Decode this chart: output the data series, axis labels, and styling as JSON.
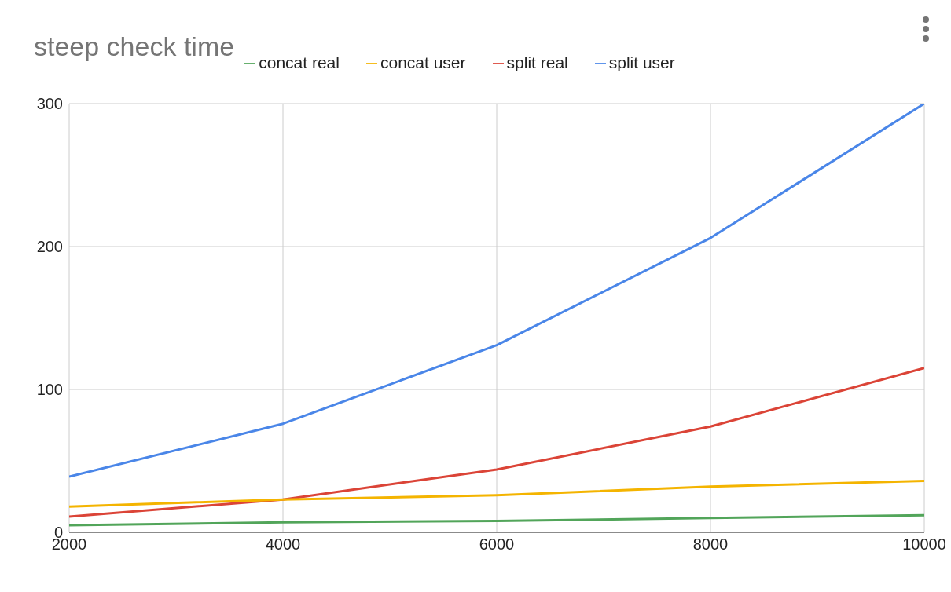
{
  "chart_data": {
    "type": "line",
    "title": "steep check time",
    "x": [
      2000,
      4000,
      6000,
      8000,
      10000
    ],
    "series": [
      {
        "name": "split user",
        "color": "#4a86e8",
        "values": [
          39,
          76,
          131,
          206,
          300
        ]
      },
      {
        "name": "split real",
        "color": "#db4437",
        "values": [
          11,
          23,
          44,
          74,
          115
        ]
      },
      {
        "name": "concat user",
        "color": "#f4b400",
        "values": [
          18,
          23,
          26,
          32,
          36
        ]
      },
      {
        "name": "concat real",
        "color": "#52a55a",
        "values": [
          5,
          7,
          8,
          10,
          12
        ]
      }
    ],
    "xlim": [
      2000,
      10000
    ],
    "xticks": [
      2000,
      4000,
      6000,
      8000,
      10000
    ],
    "ylim": [
      0,
      300
    ],
    "yticks": [
      0,
      100,
      200,
      300
    ],
    "grid": true,
    "legend": "top",
    "marker": "none",
    "line_style": "solid"
  }
}
